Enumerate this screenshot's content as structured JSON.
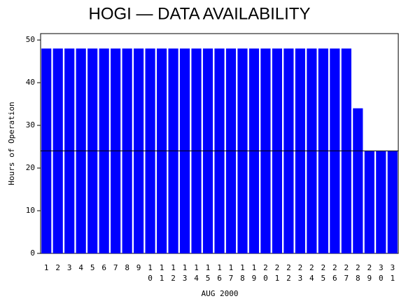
{
  "chart_data": {
    "type": "bar",
    "title": "HOGI — DATA AVAILABILITY",
    "x_label": "AUG 2000",
    "y_label": "Hours of Operation",
    "categories": [
      "1",
      "2",
      "3",
      "4",
      "5",
      "6",
      "7",
      "8",
      "9",
      "10",
      "11",
      "12",
      "13",
      "14",
      "15",
      "16",
      "17",
      "18",
      "19",
      "20",
      "21",
      "22",
      "23",
      "24",
      "25",
      "26",
      "27",
      "28",
      "29",
      "30",
      "31"
    ],
    "values": [
      48,
      48,
      48,
      48,
      48,
      48,
      48,
      48,
      48,
      48,
      48,
      48,
      48,
      48,
      48,
      48,
      48,
      48,
      48,
      48,
      48,
      48,
      48,
      48,
      48,
      48,
      48,
      34,
      24,
      24,
      24
    ],
    "color": "#0000ff",
    "reference_line": 24,
    "ylim": [
      0,
      51.5
    ],
    "yticks": [
      0,
      10,
      20,
      30,
      40,
      50
    ],
    "grid": false
  }
}
